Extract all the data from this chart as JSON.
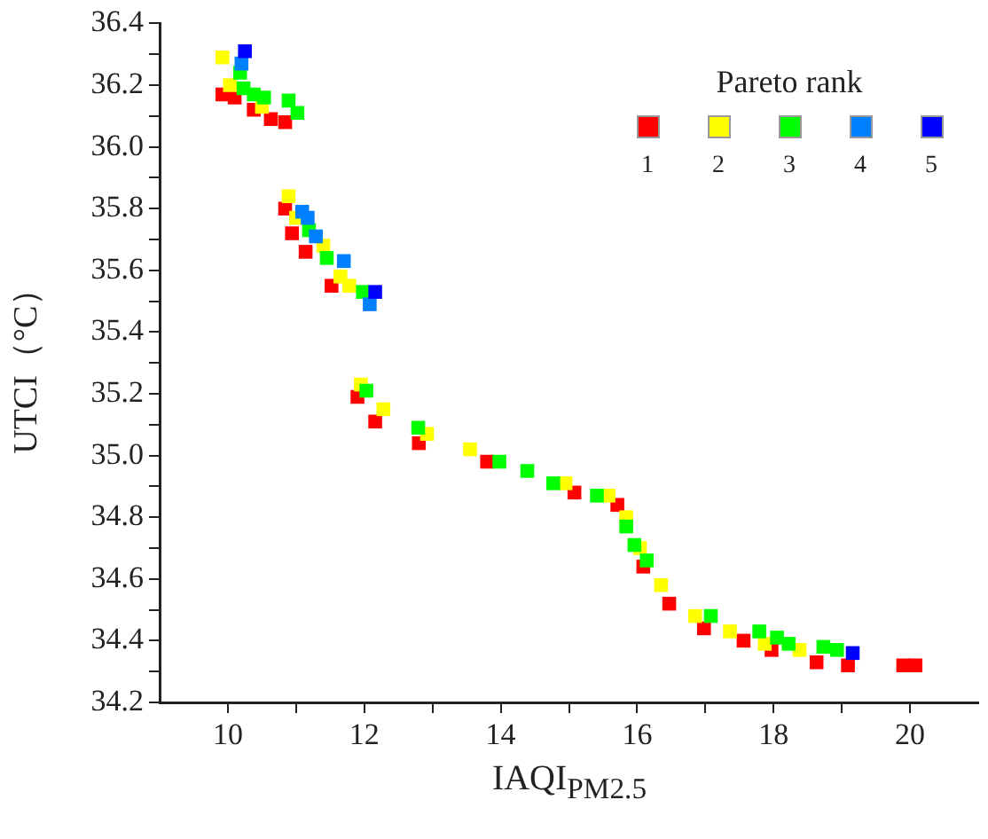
{
  "chart_data": {
    "type": "scatter",
    "xlabel": "IAQI$_{PM2.5}$",
    "ylabel": "UTCI（°C）",
    "legend_title": "Pareto rank",
    "legend": "top right",
    "marker": "square",
    "grid": false,
    "xlim": [
      9,
      21
    ],
    "xticks": [
      10,
      {
        "value": 11,
        "label": null
      },
      12,
      {
        "value": 13,
        "label": null
      },
      14,
      {
        "value": 15,
        "label": null
      },
      16,
      {
        "value": 17,
        "label": null
      },
      18,
      {
        "value": 19,
        "label": null
      },
      20
    ],
    "ylim": [
      34.2,
      36.4
    ],
    "yticks": [
      {
        "value": 34.2,
        "label": "34.2"
      },
      {
        "value": 34.3,
        "label": null
      },
      {
        "value": 34.4,
        "label": "34.4"
      },
      {
        "value": 34.5,
        "label": null
      },
      {
        "value": 34.6,
        "label": "34.6"
      },
      {
        "value": 34.7,
        "label": null
      },
      {
        "value": 34.8,
        "label": "34.8"
      },
      {
        "value": 34.9,
        "label": null
      },
      {
        "value": 35.0,
        "label": "35.0"
      },
      {
        "value": 35.1,
        "label": null
      },
      {
        "value": 35.2,
        "label": "35.2"
      },
      {
        "value": 35.3,
        "label": null
      },
      {
        "value": 35.4,
        "label": "35.4"
      },
      {
        "value": 35.5,
        "label": null
      },
      {
        "value": 35.6,
        "label": "35.6"
      },
      {
        "value": 35.7,
        "label": null
      },
      {
        "value": 35.8,
        "label": "35.8"
      },
      {
        "value": 35.9,
        "label": null
      },
      {
        "value": 36.0,
        "label": "36.0"
      },
      {
        "value": 36.1,
        "label": null
      },
      {
        "value": 36.2,
        "label": "36.2"
      },
      {
        "value": 36.3,
        "label": null
      },
      {
        "value": 36.4,
        "label": "36.4"
      }
    ],
    "series": [
      {
        "name": "1",
        "color": "#ff0000",
        "x": [
          9.92,
          10.1,
          10.38,
          10.63,
          10.84,
          10.84,
          10.94,
          11.14,
          11.52,
          11.9,
          12.16,
          12.8,
          13.8,
          15.08,
          15.71,
          16.09,
          16.47,
          16.98,
          17.56,
          17.97,
          18.63,
          19.09,
          19.9,
          20.08
        ],
        "values": [
          36.17,
          36.16,
          36.12,
          36.09,
          36.08,
          35.8,
          35.72,
          35.66,
          35.55,
          35.19,
          35.11,
          35.04,
          34.98,
          34.88,
          34.84,
          34.64,
          34.52,
          34.44,
          34.4,
          34.37,
          34.33,
          34.32,
          34.32,
          34.32
        ]
      },
      {
        "name": "2",
        "color": "#ffff00",
        "x": [
          9.92,
          10.03,
          10.5,
          10.89,
          11.0,
          11.4,
          11.65,
          11.78,
          11.95,
          12.28,
          12.92,
          13.55,
          14.95,
          15.58,
          15.84,
          16.04,
          16.35,
          16.85,
          17.36,
          17.87,
          18.38
        ],
        "values": [
          36.29,
          36.2,
          36.13,
          35.84,
          35.77,
          35.68,
          35.58,
          35.55,
          35.23,
          35.15,
          35.07,
          35.02,
          34.91,
          34.87,
          34.8,
          34.7,
          34.58,
          34.48,
          34.43,
          34.39,
          34.37
        ]
      },
      {
        "name": "3",
        "color": "#00ff00",
        "x": [
          10.18,
          10.23,
          10.38,
          10.53,
          10.89,
          11.02,
          11.19,
          11.45,
          11.98,
          12.03,
          12.79,
          13.98,
          14.39,
          14.77,
          15.41,
          15.84,
          15.96,
          16.14,
          17.08,
          17.79,
          18.05,
          18.22,
          18.73,
          18.93
        ],
        "values": [
          36.24,
          36.19,
          36.17,
          36.16,
          36.15,
          36.11,
          35.73,
          35.64,
          35.53,
          35.21,
          35.09,
          34.98,
          34.95,
          34.91,
          34.87,
          34.77,
          34.71,
          34.66,
          34.48,
          34.43,
          34.41,
          34.39,
          34.38,
          34.37
        ]
      },
      {
        "name": "4",
        "color": "#0080ff",
        "x": [
          10.2,
          11.09,
          11.17,
          11.29,
          11.7,
          12.08
        ],
        "values": [
          36.27,
          35.79,
          35.77,
          35.71,
          35.63,
          35.49
        ]
      },
      {
        "name": "5",
        "color": "#0000ff",
        "x": [
          10.25,
          12.16,
          19.16
        ],
        "values": [
          36.31,
          35.53,
          34.36
        ]
      }
    ]
  }
}
